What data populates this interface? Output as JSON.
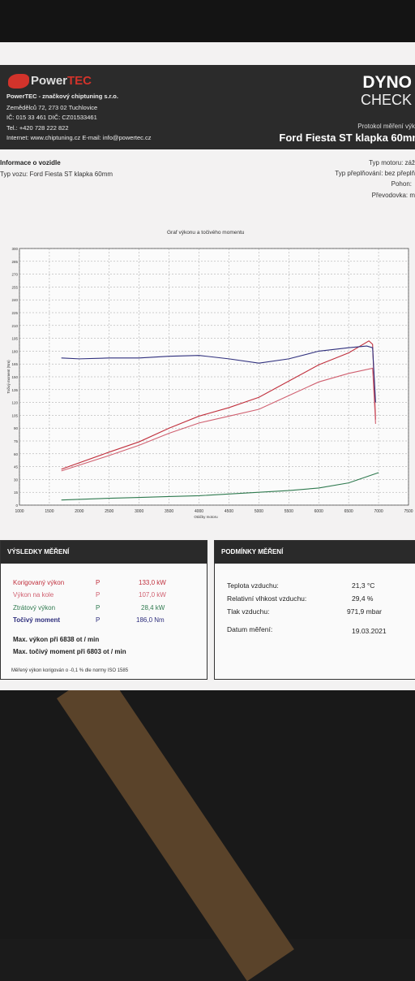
{
  "colors": {
    "header_bg": "#2b2b2b",
    "brand_red": "#d2332b",
    "power_corr": "#c0303d",
    "power_wheel": "#d06070",
    "loss": "#2f7a4f",
    "torque": "#2f2f7d"
  },
  "header": {
    "logo_text": "PowerTEC",
    "logo_word1": "Power",
    "logo_word2": "TEC",
    "company": "PowerTEC - značkový chiptuning s.r.o.",
    "address": "Zemědělců 72, 273 02 Tuchlovice",
    "ids": "IČ: 015 33 461 DIČ: CZ01533461",
    "phone": "Tel.: +420 728 222 822",
    "web": "Internet: www.chiptuning.cz E-mail: info@powertec.cz",
    "dyno": "DYNO",
    "check": "CHECK",
    "protocol": "Protokol měření výk",
    "vehicle": "Ford Fiesta ST klapka 60mm"
  },
  "vehicle_info": {
    "title": "Informace o vozidle",
    "type_line": "Typ vozu: Ford Fiesta ST klapka 60mm",
    "engine": "Typ motoru: záž",
    "transmission_type": "Typ přeplňování: bez přeplň",
    "drive": "Pohon:",
    "gearbox": "Převodovka: m"
  },
  "chart_data": {
    "type": "line",
    "title": "Graf výkonu a točivého momentu",
    "xlabel": "Otáčky motoru",
    "ylabel": "Točivý moment (Nm)",
    "xlim": [
      1000,
      7500
    ],
    "ylim": [
      0,
      300
    ],
    "x_ticks": [
      "1000",
      "1500",
      "2000",
      "2500",
      "3000",
      "3500",
      "4000",
      "4500",
      "5000",
      "5500",
      "6000",
      "6500",
      "7000",
      "7500"
    ],
    "y_ticks": [
      "0",
      "15",
      "30",
      "45",
      "60",
      "75",
      "90",
      "105",
      "120",
      "135",
      "150",
      "165",
      "180",
      "195",
      "210",
      "225",
      "240",
      "255",
      "270",
      "285",
      "300"
    ],
    "grid": true,
    "series": [
      {
        "name": "Korigovaný výkon",
        "color": "#c0303d",
        "x": [
          1700,
          2500,
          3000,
          3500,
          4000,
          4500,
          5000,
          5500,
          6000,
          6500,
          6838,
          6900,
          6950
        ],
        "y": [
          42,
          62,
          74,
          90,
          104,
          114,
          126,
          145,
          164,
          178,
          192,
          188,
          100
        ]
      },
      {
        "name": "Výkon na kole",
        "color": "#d06070",
        "x": [
          1700,
          2500,
          3000,
          3500,
          4000,
          4500,
          5000,
          5500,
          6000,
          6500,
          6900,
          6950
        ],
        "y": [
          40,
          58,
          70,
          84,
          96,
          104,
          112,
          128,
          144,
          154,
          160,
          95
        ]
      },
      {
        "name": "Točivý moment",
        "color": "#2f2f7d",
        "x": [
          1700,
          2000,
          2500,
          3000,
          3500,
          4000,
          4500,
          5000,
          5500,
          6000,
          6500,
          6803,
          6900,
          6950
        ],
        "y": [
          172,
          171,
          172,
          172,
          174,
          175,
          171,
          166,
          171,
          180,
          184,
          186,
          184,
          120
        ]
      },
      {
        "name": "Ztrátový výkon",
        "color": "#2f7a4f",
        "x": [
          1700,
          2500,
          3000,
          3500,
          4000,
          4500,
          5000,
          5500,
          6000,
          6500,
          7000
        ],
        "y": [
          6,
          8,
          9,
          10,
          11,
          13,
          15,
          17,
          20,
          26,
          38
        ]
      }
    ]
  },
  "results": {
    "title": "VÝSLEDKY MĚŘENÍ",
    "rows": [
      {
        "label": "Korigovaný výkon",
        "sym": "P",
        "value": "133,0 kW",
        "color": "#c0303d"
      },
      {
        "label": "Výkon na kole",
        "sym": "P",
        "value": "107,0 kW",
        "color": "#d06070"
      },
      {
        "label": "Ztrátový výkon",
        "sym": "P",
        "value": "28,4 kW",
        "color": "#2f7a4f"
      },
      {
        "label": "Točivý moment",
        "sym": "P",
        "value": "186,0 Nm",
        "color": "#2f2f7d"
      }
    ],
    "max_power": "Max. výkon při 6838 ot / min",
    "max_torque": "Max. točivý moment při 6803 ot / min",
    "note": "Měřený výkon korigován o -0,1 % dle normy ISO 1585"
  },
  "conditions": {
    "title": "PODMÍNKY MĚŘENÍ",
    "rows": [
      {
        "label": "Teplota vzduchu:",
        "value": "21,3 °C"
      },
      {
        "label": "Relativní vlhkost vzduchu:",
        "value": "29,4 %"
      },
      {
        "label": "Tlak vzduchu:",
        "value": "971,9 mbar"
      },
      {
        "label": "Datum měření:",
        "value": "19.03.2021"
      }
    ]
  }
}
